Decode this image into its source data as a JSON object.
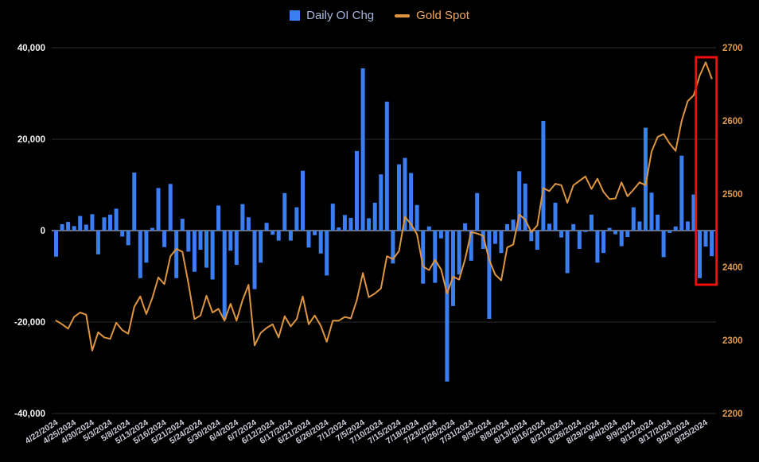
{
  "colors": {
    "background": "#000000",
    "bar_blue": "#3b7ef2",
    "gold_line": "#de9540",
    "grid": "#2b2b2b",
    "zero_line": "#d9d9d9",
    "left_axis_text": "#f2f2f2",
    "right_axis_text": "#dd9b52",
    "x_axis_text": "#c9cad6",
    "highlight_red": "#f20d0d"
  },
  "legend": {
    "items": [
      {
        "label": "Daily OI Chg",
        "text_color": "#a9b7dd",
        "swatch": "square"
      },
      {
        "label": "Gold Spot",
        "text_color": "#eda763",
        "swatch": "dash"
      }
    ]
  },
  "chart_data": {
    "type": "combo",
    "title": "",
    "x_tick_every": 3,
    "x": [
      "4/22/2024",
      "4/23/2024",
      "4/24/2024",
      "4/25/2024",
      "4/26/2024",
      "4/29/2024",
      "4/30/2024",
      "5/1/2024",
      "5/2/2024",
      "5/3/2024",
      "5/6/2024",
      "5/7/2024",
      "5/8/2024",
      "5/9/2024",
      "5/10/2024",
      "5/13/2024",
      "5/14/2024",
      "5/15/2024",
      "5/16/2024",
      "5/17/2024",
      "5/20/2024",
      "5/21/2024",
      "5/22/2024",
      "5/23/2024",
      "5/24/2024",
      "5/28/2024",
      "5/29/2024",
      "5/30/2024",
      "5/31/2024",
      "6/3/2024",
      "6/4/2024",
      "6/5/2024",
      "6/6/2024",
      "6/7/2024",
      "6/10/2024",
      "6/11/2024",
      "6/12/2024",
      "6/13/2024",
      "6/14/2024",
      "6/17/2024",
      "6/18/2024",
      "6/20/2024",
      "6/21/2024",
      "6/24/2024",
      "6/25/2024",
      "6/26/2024",
      "6/27/2024",
      "6/28/2024",
      "7/1/2024",
      "7/2/2024",
      "7/3/2024",
      "7/5/2024",
      "7/8/2024",
      "7/9/2024",
      "7/10/2024",
      "7/11/2024",
      "7/12/2024",
      "7/15/2024",
      "7/16/2024",
      "7/17/2024",
      "7/18/2024",
      "7/19/2024",
      "7/22/2024",
      "7/23/2024",
      "7/24/2024",
      "7/25/2024",
      "7/26/2024",
      "7/29/2024",
      "7/30/2024",
      "7/31/2024",
      "8/1/2024",
      "8/2/2024",
      "8/5/2024",
      "8/6/2024",
      "8/7/2024",
      "8/8/2024",
      "8/9/2024",
      "8/12/2024",
      "8/13/2024",
      "8/14/2024",
      "8/15/2024",
      "8/16/2024",
      "8/19/2024",
      "8/20/2024",
      "8/21/2024",
      "8/22/2024",
      "8/23/2024",
      "8/26/2024",
      "8/27/2024",
      "8/28/2024",
      "8/29/2024",
      "8/30/2024",
      "9/3/2024",
      "9/4/2024",
      "9/5/2024",
      "9/6/2024",
      "9/9/2024",
      "9/10/2024",
      "9/11/2024",
      "9/12/2024",
      "9/13/2024",
      "9/16/2024",
      "9/17/2024",
      "9/18/2024",
      "9/19/2024",
      "9/20/2024",
      "9/23/2024",
      "9/24/2024",
      "9/25/2024",
      "9/26/2024"
    ],
    "series": [
      {
        "name": "Daily OI Chg",
        "type": "bar",
        "axis": "left",
        "color": "#3b7ef2",
        "values": [
          -5700,
          1400,
          1900,
          1000,
          3200,
          1300,
          3600,
          -5200,
          2900,
          3500,
          4800,
          -1300,
          -3200,
          12700,
          -10400,
          -7000,
          600,
          9300,
          -3600,
          10200,
          -10400,
          2600,
          -4600,
          -9000,
          -4200,
          -8100,
          -10700,
          5500,
          -19400,
          -4400,
          -7500,
          5800,
          2900,
          -12800,
          -7000,
          1700,
          -900,
          -2200,
          8200,
          -2200,
          5100,
          13100,
          -3700,
          -1000,
          -5000,
          -9800,
          5900,
          700,
          3400,
          2800,
          17400,
          35500,
          2700,
          6100,
          12300,
          28200,
          -7200,
          14500,
          15900,
          12600,
          5600,
          -11600,
          900,
          -11400,
          -1700,
          -33000,
          -16500,
          -9600,
          1600,
          -6600,
          8200,
          -4000,
          -19300,
          -2900,
          -4900,
          1400,
          2400,
          13000,
          10300,
          -2300,
          -4200,
          24000,
          1500,
          6100,
          -1500,
          -9300,
          1400,
          -4000,
          -300,
          3500,
          -7000,
          -4900,
          600,
          -800,
          -3400,
          -1400,
          5100,
          2000,
          22500,
          8300,
          3500,
          -5800,
          -500,
          900,
          16400,
          2000,
          7900,
          -10400,
          -3500,
          -5600
        ]
      },
      {
        "name": "Gold Spot",
        "type": "line",
        "axis": "right",
        "color": "#de9540",
        "values": [
          2327,
          2322,
          2316,
          2332,
          2338,
          2335,
          2286,
          2311,
          2304,
          2302,
          2324,
          2314,
          2309,
          2346,
          2360,
          2336,
          2358,
          2386,
          2377,
          2415,
          2425,
          2421,
          2378,
          2329,
          2334,
          2361,
          2338,
          2343,
          2327,
          2350,
          2327,
          2355,
          2376,
          2293,
          2310,
          2317,
          2322,
          2304,
          2333,
          2319,
          2329,
          2360,
          2322,
          2334,
          2320,
          2298,
          2327,
          2327,
          2332,
          2330,
          2355,
          2392,
          2359,
          2364,
          2371,
          2415,
          2411,
          2422,
          2469,
          2459,
          2445,
          2401,
          2396,
          2410,
          2397,
          2364,
          2387,
          2383,
          2411,
          2448,
          2446,
          2443,
          2410,
          2390,
          2382,
          2427,
          2431,
          2472,
          2465,
          2448,
          2457,
          2508,
          2504,
          2514,
          2512,
          2488,
          2512,
          2518,
          2524,
          2507,
          2521,
          2503,
          2493,
          2494,
          2516,
          2497,
          2506,
          2516,
          2512,
          2558,
          2578,
          2582,
          2569,
          2559,
          2600,
          2627,
          2635,
          2662,
          2680,
          2658
        ]
      }
    ],
    "left_axis": {
      "labels": [
        "40,000",
        "20,000",
        "0",
        "-20,000",
        "-40,000"
      ],
      "ticks": [
        40000,
        20000,
        0,
        -20000,
        -40000
      ],
      "range": [
        -40000,
        40000
      ]
    },
    "right_axis": {
      "labels": [
        "2700",
        "2600",
        "2500",
        "2400",
        "2300",
        "2200"
      ],
      "ticks": [
        2700,
        2600,
        2500,
        2400,
        2300,
        2200
      ],
      "range": [
        2200,
        2700
      ]
    },
    "annotation": {
      "type": "highlight-box",
      "color": "#f20d0d",
      "start_index": 107,
      "end_index": 109,
      "start_date": "9/24/2024",
      "end_date": "9/26/2024"
    },
    "grid": true,
    "legend_position": "top-center"
  }
}
